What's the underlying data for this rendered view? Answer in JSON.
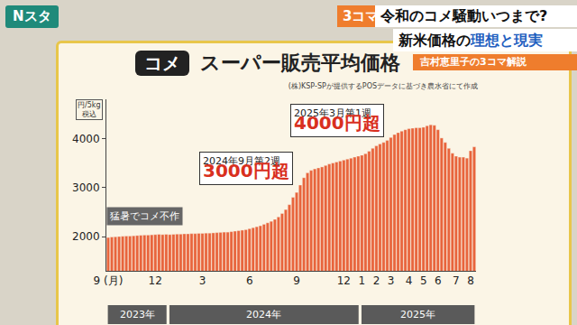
{
  "screen": {
    "program": "Nスタ",
    "corner": "3コマ",
    "headline": "令和のコメ騒動いつまで?",
    "subheadline": [
      "新米価格の",
      "理想と現実"
    ],
    "caption": "吉村恵里子の3コマ解説"
  },
  "chart_data": {
    "type": "bar",
    "title_badge": "コメ",
    "title": "スーパー販売平均価格",
    "source": "(株)KSP-SPが提供するPOSデータに基づき農水省にて作成",
    "y_unit": [
      "円/5kg",
      "税込"
    ],
    "categories": [
      "9 (月)",
      null,
      null,
      null,
      null,
      null,
      null,
      null,
      null,
      null,
      null,
      null,
      null,
      "12",
      null,
      null,
      null,
      null,
      null,
      null,
      null,
      null,
      null,
      null,
      null,
      null,
      "3",
      null,
      null,
      null,
      null,
      null,
      null,
      null,
      null,
      null,
      null,
      null,
      null,
      "6",
      null,
      null,
      null,
      null,
      null,
      null,
      null,
      null,
      null,
      null,
      null,
      null,
      "9",
      null,
      null,
      null,
      null,
      null,
      null,
      null,
      null,
      null,
      null,
      null,
      null,
      "12",
      null,
      null,
      null,
      null,
      "1",
      null,
      null,
      null,
      "2",
      null,
      null,
      null,
      "3",
      null,
      null,
      null,
      null,
      "4",
      null,
      null,
      null,
      "5",
      null,
      null,
      null,
      "6",
      null,
      null,
      null,
      null,
      "7",
      null,
      null,
      null,
      "8",
      null
    ],
    "year_groups": [
      {
        "label": "2023年",
        "weeks": 17
      },
      {
        "label": "2024年",
        "weeks": 53
      },
      {
        "label": "2025年",
        "weeks": 32
      }
    ],
    "values": [
      1980,
      1990,
      1995,
      2000,
      2005,
      2010,
      2010,
      2015,
      2020,
      2025,
      2030,
      2030,
      2035,
      2040,
      2045,
      2040,
      2045,
      2040,
      2045,
      2050,
      2050,
      2055,
      2055,
      2060,
      2060,
      2065,
      2065,
      2070,
      2070,
      2075,
      2080,
      2085,
      2090,
      2090,
      2100,
      2110,
      2120,
      2130,
      2140,
      2160,
      2180,
      2200,
      2220,
      2250,
      2280,
      2310,
      2350,
      2400,
      2470,
      2550,
      2650,
      2800,
      2900,
      3050,
      3200,
      3300,
      3350,
      3380,
      3400,
      3420,
      3450,
      3480,
      3500,
      3520,
      3540,
      3560,
      3580,
      3600,
      3620,
      3640,
      3660,
      3690,
      3740,
      3800,
      3850,
      3890,
      3920,
      3960,
      4020,
      4080,
      4120,
      4150,
      4180,
      4200,
      4210,
      4220,
      4220,
      4230,
      4260,
      4280,
      4270,
      4180,
      4010,
      3920,
      3800,
      3700,
      3640,
      3620,
      3620,
      3600,
      3750,
      3830
    ],
    "color": "#e8643c",
    "ylim": [
      1300,
      4800
    ],
    "yticks": [
      2000,
      3000,
      4000
    ],
    "grid": false,
    "annotations": [
      {
        "index": 53,
        "label": "2024年9月第2週",
        "text": "3000円超"
      },
      {
        "index": 78,
        "label": "2025年3月第1週",
        "text": "4000円超"
      },
      {
        "index": 10,
        "text": "猛暑でコメ不作"
      }
    ]
  }
}
